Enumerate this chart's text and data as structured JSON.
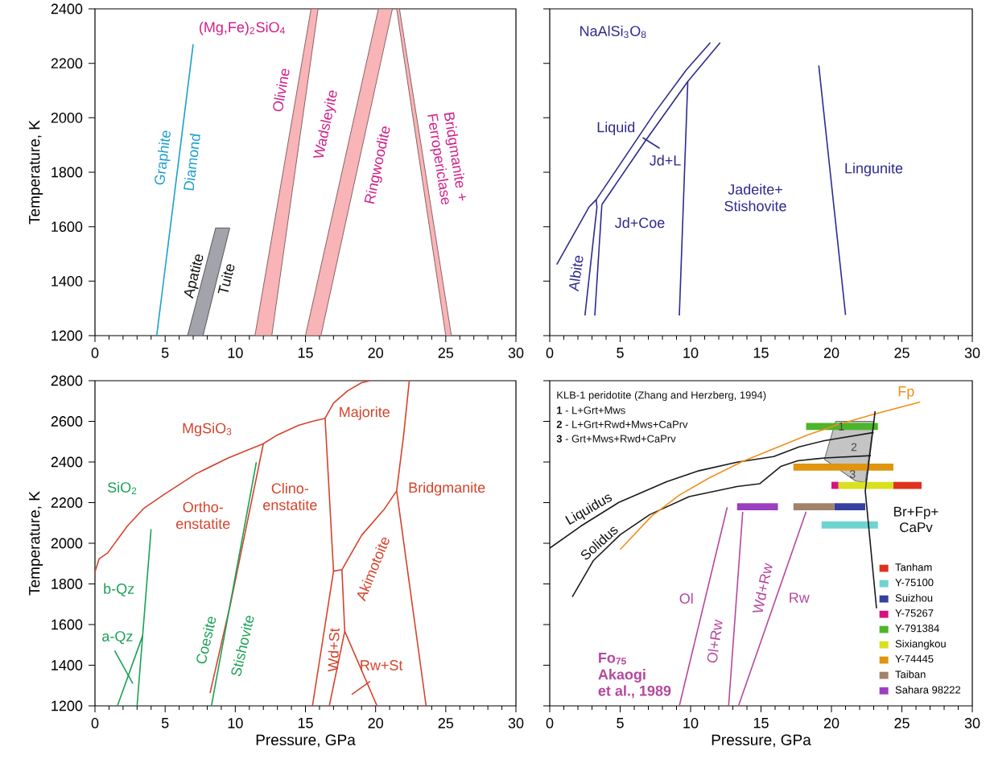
{
  "chart_data": [
    {
      "type": "line",
      "ylabel": "Temperature, K",
      "xlim": [
        0,
        30
      ],
      "ylim": [
        1200,
        2400
      ],
      "xticks": [
        0,
        5,
        10,
        15,
        20,
        25,
        30
      ],
      "yticks": [
        1200,
        1400,
        1600,
        1800,
        2000,
        2200,
        2400
      ],
      "series": [
        {
          "color": "#1e9fcc",
          "x": [
            4.4,
            7.0
          ],
          "values": [
            1200,
            2270
          ]
        },
        {
          "color": "#a3a3ab",
          "x": [
            6.6,
            7.7,
            8.6,
            9.6
          ],
          "values": [
            null,
            null,
            null,
            null
          ],
          "lower": [
            1200,
            1200,
            1387,
            1595
          ],
          "upper": [
            1200,
            1417,
            1595,
            1595
          ]
        },
        {
          "color": "#f8b4b7",
          "x": [
            11.4,
            12.6,
            15.4,
            15.9
          ],
          "values": [
            null,
            null,
            null,
            null
          ],
          "lower": [
            1200,
            1200,
            2218,
            2400
          ],
          "upper": [
            1200,
            1560,
            2400,
            2400
          ]
        },
        {
          "color": "#f8b4b7",
          "x": [
            15.0,
            16.1,
            20.2,
            21.2
          ],
          "values": [
            null,
            null,
            null,
            null
          ],
          "lower": [
            1200,
            1200,
            2165,
            2400
          ],
          "upper": [
            1200,
            1454,
            2400,
            2400
          ]
        },
        {
          "color": "#f8b4b7",
          "x": [
            21.5,
            21.7,
            25.0,
            25.4
          ],
          "values": [
            null,
            null,
            null,
            null
          ],
          "lower": [
            2400,
            2331,
            1200,
            1200
          ],
          "upper": [
            2400,
            2400,
            1330,
            1200
          ]
        }
      ],
      "annotations": [
        "(Mg,Fe)$_{2}$SiO$_{4}$",
        "Graphite",
        "Diamond",
        "Olivine",
        "Wadsleyite",
        "Ringwoodite",
        "Bridgmanite + Ferropericlase",
        "Apatite",
        "Tuite"
      ]
    },
    {
      "type": "line",
      "xlim": [
        0,
        30
      ],
      "ylim": [
        1200,
        2400
      ],
      "xticks": [
        0,
        5,
        10,
        15,
        20,
        25,
        30
      ],
      "yticks": [
        1200,
        1400,
        1600,
        1800,
        2000,
        2200,
        2400
      ],
      "tick_labels": "x",
      "series": [
        {
          "color": "#2d2b8f",
          "x": [
            0.5,
            2.8,
            3.3,
            7.5,
            9.7,
            11.4
          ],
          "values": [
            1461,
            1673,
            1699,
            2022,
            2176,
            2276
          ]
        },
        {
          "color": "#2d2b8f",
          "x": [
            3.7,
            6.8,
            9.8,
            12.1
          ],
          "values": [
            1681,
            1916,
            2133,
            2276
          ]
        },
        {
          "color": "#2d2b8f",
          "x": [
            6.6,
            7.8
          ],
          "values": [
            1927,
            1888
          ]
        },
        {
          "color": "#2d2b8f",
          "x": [
            3.3,
            3.35,
            2.5
          ],
          "values": [
            1699,
            1671,
            1274
          ]
        },
        {
          "color": "#2d2b8f",
          "x": [
            3.7,
            3.2
          ],
          "values": [
            1681,
            1274
          ]
        },
        {
          "color": "#2d2b8f",
          "x": [
            9.8,
            9.2
          ],
          "values": [
            2133,
            1274
          ]
        },
        {
          "color": "#2d2b8f",
          "x": [
            19.1,
            21.0
          ],
          "values": [
            2192,
            1276
          ]
        }
      ],
      "annotations": [
        "NaAlSi$_{3}$O$_{8}$",
        "Liquid",
        "Jd+L",
        "Jd+Coe",
        "Jadeite+ Stishovite",
        "Lingunite",
        "Albite"
      ]
    },
    {
      "type": "line",
      "xlabel": "Pressure, GPa",
      "ylabel": "Temperature, K",
      "xlim": [
        0,
        30
      ],
      "ylim": [
        1200,
        2800
      ],
      "xticks": [
        0,
        5,
        10,
        15,
        20,
        25,
        30
      ],
      "yticks": [
        1200,
        1400,
        1600,
        1800,
        2000,
        2200,
        2400,
        2600,
        2800
      ],
      "series": [
        {
          "color": "#d6432c",
          "x": [
            0,
            0.3,
            0.9,
            2.3,
            3.5,
            4.9,
            7.2,
            9.5,
            12.0,
            13.0,
            14.5,
            15.5,
            16.4,
            17.0,
            18.0,
            19.0,
            19.6
          ],
          "values": [
            1859,
            1924,
            1952,
            2084,
            2173,
            2239,
            2342,
            2420,
            2490,
            2533,
            2580,
            2600,
            2615,
            2690,
            2750,
            2790,
            2800
          ]
        },
        {
          "color": "#d6432c",
          "x": [
            12.0,
            9.7,
            8.2
          ],
          "values": [
            2490,
            1715,
            1263
          ]
        },
        {
          "color": "#d6432c",
          "x": [
            16.4,
            17.0,
            15.5
          ],
          "values": [
            2615,
            1863,
            1200
          ]
        },
        {
          "color": "#d6432c",
          "x": [
            17.0,
            17.6
          ],
          "values": [
            1863,
            1870
          ]
        },
        {
          "color": "#d6432c",
          "x": [
            17.6,
            17.8
          ],
          "values": [
            1870,
            1567
          ]
        },
        {
          "color": "#d6432c",
          "x": [
            16.7,
            17.8,
            20.1
          ],
          "values": [
            1200,
            1567,
            1200
          ]
        },
        {
          "color": "#d6432c",
          "x": [
            18.3,
            19.6
          ],
          "values": [
            1256,
            1320
          ]
        },
        {
          "color": "#d6432c",
          "x": [
            17.6,
            19.0,
            20.6,
            21.5
          ],
          "values": [
            1870,
            2039,
            2166,
            2258
          ]
        },
        {
          "color": "#d6432c",
          "x": [
            22.4,
            22.0,
            21.5,
            23.6
          ],
          "values": [
            2800,
            2533,
            2258,
            1200
          ]
        },
        {
          "color": "#1ba155",
          "x": [
            11.5,
            8.3
          ],
          "values": [
            2399,
            1200
          ]
        },
        {
          "color": "#1ba155",
          "x": [
            4.0,
            3.0
          ],
          "values": [
            2070,
            1200
          ]
        },
        {
          "color": "#1ba155",
          "x": [
            3.4,
            1.6
          ],
          "values": [
            1546,
            1200
          ]
        },
        {
          "color": "#1ba155",
          "x": [
            1.4,
            2.7
          ],
          "values": [
            1472,
            1309
          ]
        }
      ],
      "annotations": [
        "MgSiO$_{3}$",
        "SiO$_{2}$",
        "Ortho-enstatite",
        "Clino-enstatite",
        "Majorite",
        "Bridgmanite",
        "Akimotoite",
        "Wd+St",
        "Rw+St",
        "Coesite",
        "Stishovite",
        "b-Qz",
        "a-Qz"
      ]
    },
    {
      "type": "line",
      "xlabel": "Pressure, GPa",
      "xlim": [
        0,
        30
      ],
      "ylim": [
        1200,
        2800
      ],
      "xticks": [
        0,
        5,
        10,
        15,
        20,
        25,
        30
      ],
      "yticks": [
        1200,
        1400,
        1600,
        1800,
        2000,
        2200,
        2400,
        2600,
        2800
      ],
      "tick_labels": "x",
      "legend": "bottom right",
      "series": [
        {
          "color": "#c4c4c4",
          "x": [
            19.5,
            20.3,
            21.7,
            22.4,
            23.0
          ],
          "values": [
            null,
            null,
            null,
            null,
            null
          ],
          "lower": [
            2413,
            2375,
            2307,
            2300,
            2600
          ],
          "upper": [
            2413,
            2600,
            2600,
            2600,
            2600
          ]
        },
        {
          "name": "Tanham",
          "color": "#e0311f",
          "x": [
            24.4,
            26.4
          ],
          "values": [
            2285,
            2285
          ]
        },
        {
          "name": "Y-75100",
          "color": "#6fd3cf",
          "x": [
            19.3,
            23.3
          ],
          "values": [
            2090,
            2090
          ]
        },
        {
          "name": "Suizhou",
          "color": "#3540a0",
          "x": [
            20.2,
            22.4
          ],
          "values": [
            2180,
            2180
          ]
        },
        {
          "name": "Y-75267",
          "color": "#d6127f",
          "x": [
            20.0,
            20.5
          ],
          "values": [
            2285,
            2285
          ]
        },
        {
          "name": "Y-791384",
          "color": "#4cb52a",
          "x": [
            18.2,
            23.3
          ],
          "values": [
            2575,
            2575
          ]
        },
        {
          "name": "Sixiangkou",
          "color": "#d9e01f",
          "x": [
            20.5,
            24.4
          ],
          "values": [
            2285,
            2285
          ]
        },
        {
          "name": "Y-74445",
          "color": "#e0950f",
          "x": [
            17.3,
            24.4
          ],
          "values": [
            2375,
            2375
          ]
        },
        {
          "name": "Taiban",
          "color": "#a2826a",
          "x": [
            17.3,
            20.2
          ],
          "values": [
            2180,
            2180
          ]
        },
        {
          "name": "Sahara 98222",
          "color": "#9b3fc0",
          "x": [
            13.3,
            16.2
          ],
          "values": [
            2180,
            2180
          ]
        },
        {
          "color": "#1a1a1a",
          "x": [
            0,
            2.2,
            4.9,
            8.3,
            10.6,
            13.3,
            15.9,
            17.7,
            19.5,
            23.0
          ],
          "values": [
            1976,
            2084,
            2201,
            2303,
            2357,
            2399,
            2427,
            2474,
            2505,
            2545
          ]
        },
        {
          "color": "#1a1a1a",
          "x": [
            1.6,
            3.1,
            5.0,
            7.1,
            9.9,
            13.3,
            14.9,
            16.4,
            17.6,
            19.5,
            22.8
          ],
          "values": [
            1736,
            1915,
            2042,
            2141,
            2230,
            2279,
            2293,
            2378,
            2406,
            2420,
            2431
          ]
        },
        {
          "color": "#f0901a",
          "x": [
            5.0,
            7.2,
            9.2,
            11.3,
            13.7,
            18.3,
            20.5,
            23.0,
            26.3
          ],
          "values": [
            1969,
            2131,
            2237,
            2321,
            2403,
            2533,
            2585,
            2635,
            2695
          ]
        },
        {
          "color": "#1a1a1a",
          "x": [
            23.2,
            22.4,
            22.9,
            23.1
          ],
          "values": [
            1680,
            2258,
            2533,
            2650
          ]
        },
        {
          "color": "#b4489e",
          "x": [
            12.6,
            9.2
          ],
          "values": [
            2177,
            1200
          ]
        },
        {
          "color": "#b4489e",
          "x": [
            13.7,
            12.7
          ],
          "values": [
            2155,
            1200
          ]
        },
        {
          "color": "#b4489e",
          "x": [
            18.2,
            13.4
          ],
          "values": [
            2155,
            1200
          ]
        }
      ],
      "annotations": [
        "KLB-1 peridotite (Zhang and Herzberg, 1994)",
        "**1** - L+Grt+Mws",
        "**2** - L+Grt+Rwd+Mws+CaPrv",
        "**3** - Grt+Mws+Rwd+CaPrv",
        "1",
        "2",
        "3",
        "Fp",
        "Liquidus",
        "Solidus",
        "Br+Fp+ CaPv",
        "Ol",
        "Ol+Rw",
        "Wd+Rw",
        "Rw",
        "Fo$_{75}$ Akaogi",
        "et al., 1989"
      ]
    }
  ]
}
